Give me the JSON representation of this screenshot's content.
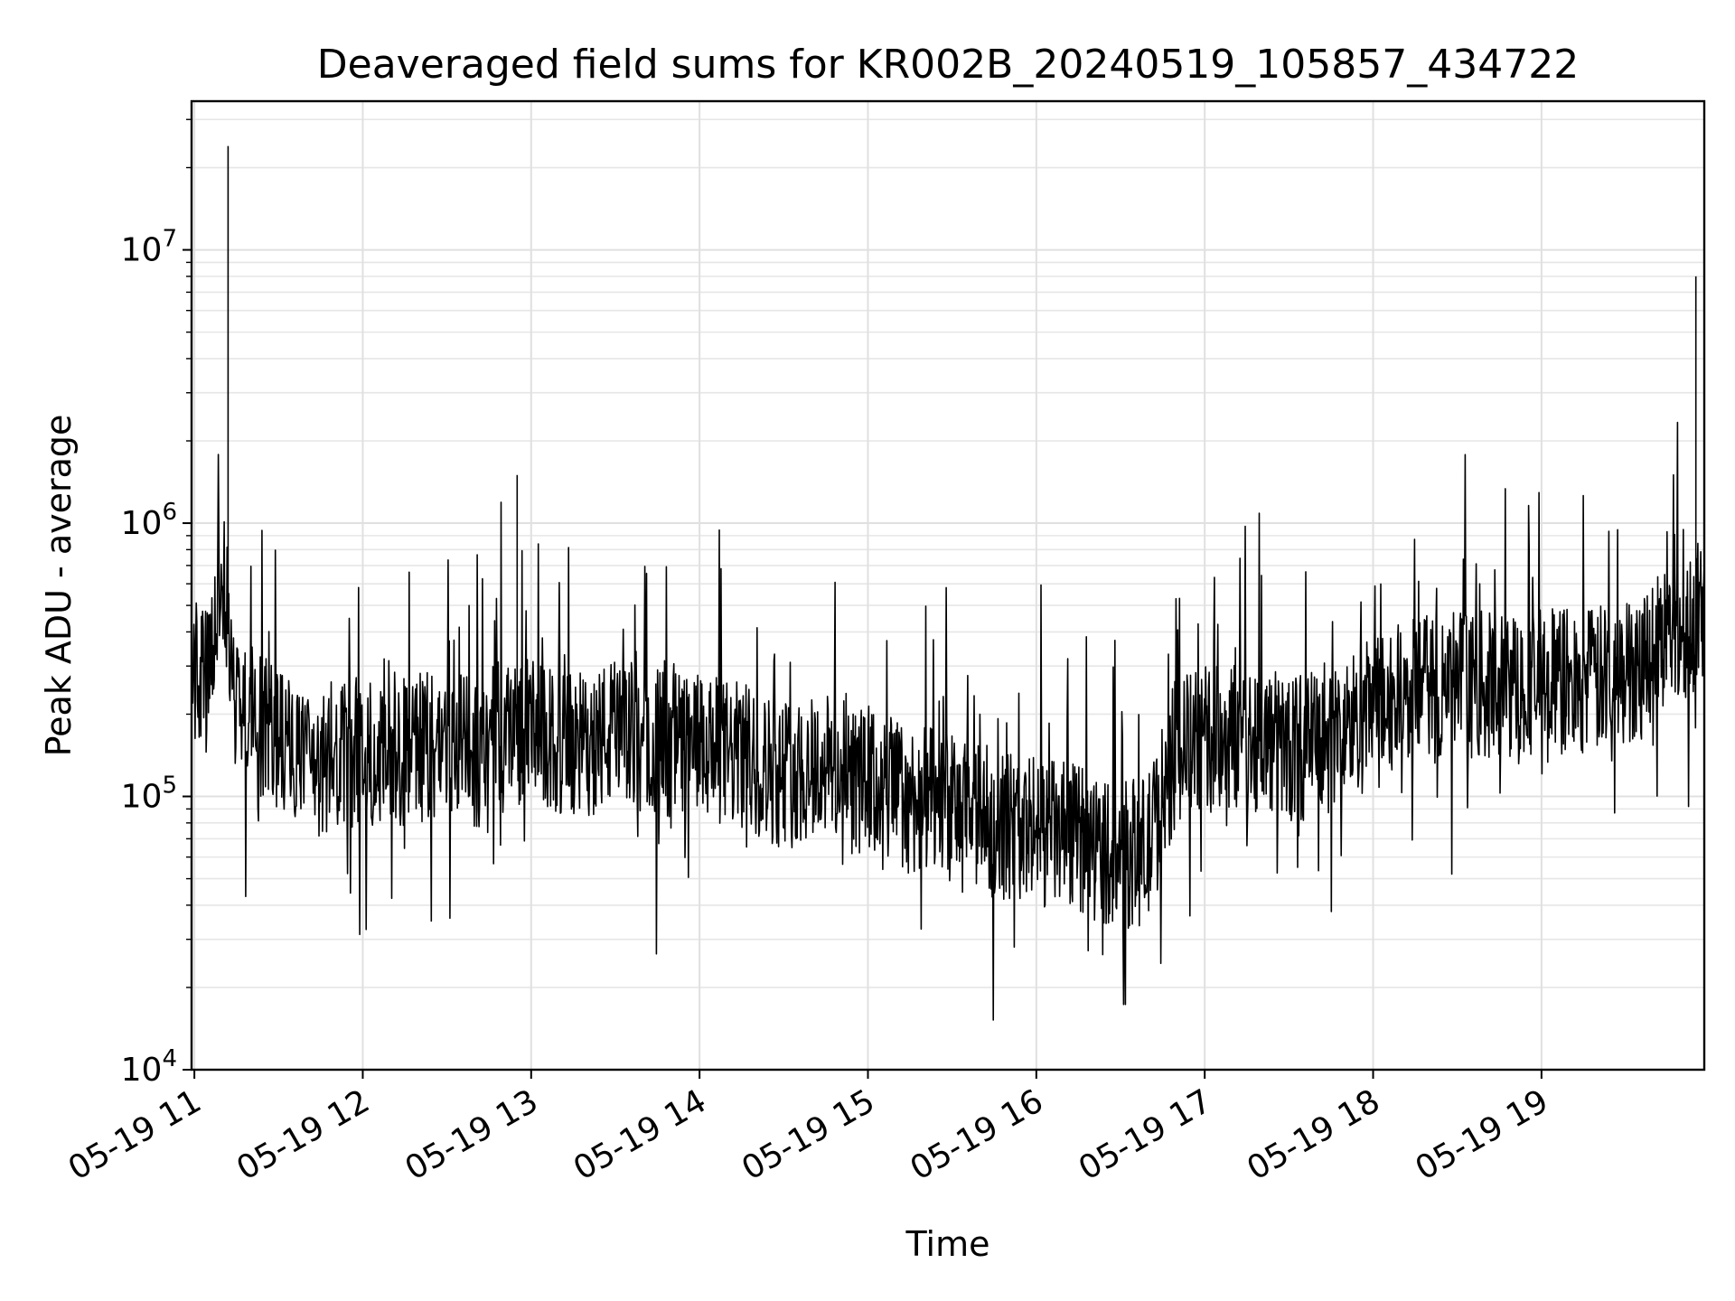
{
  "chart_data": {
    "type": "line",
    "title": "Deaveraged field sums for KR002B_20240519_105857_434722",
    "xlabel": "Time",
    "ylabel": "Peak ADU - average",
    "yscale": "log",
    "ylim": [
      10000,
      35000000
    ],
    "xlim": [
      "2024-05-19 10:59",
      "2024-05-19 19:58"
    ],
    "x_ticks": [
      "05-19 11",
      "05-19 12",
      "05-19 13",
      "05-19 14",
      "05-19 15",
      "05-19 16",
      "05-19 17",
      "05-19 18",
      "05-19 19"
    ],
    "y_ticks": [
      {
        "base": "10",
        "exp": "4",
        "value": 10000
      },
      {
        "base": "10",
        "exp": "5",
        "value": 100000
      },
      {
        "base": "10",
        "exp": "6",
        "value": 1000000
      },
      {
        "base": "10",
        "exp": "7",
        "value": 10000000
      }
    ],
    "grid": true,
    "line_color": "#000000",
    "series": [
      {
        "x": [
          "2024-05-19 10:59",
          "2024-05-19 11:05",
          "2024-05-19 11:10",
          "2024-05-19 11:12",
          "2024-05-19 11:15",
          "2024-05-19 11:20",
          "2024-05-19 11:30",
          "2024-05-19 11:40",
          "2024-05-19 11:50",
          "2024-05-19 12:00",
          "2024-05-19 12:10",
          "2024-05-19 12:20",
          "2024-05-19 12:30",
          "2024-05-19 12:40",
          "2024-05-19 12:50",
          "2024-05-19 12:55",
          "2024-05-19 13:00",
          "2024-05-19 13:05",
          "2024-05-19 13:15",
          "2024-05-19 13:30",
          "2024-05-19 13:45",
          "2024-05-19 14:00",
          "2024-05-19 14:15",
          "2024-05-19 14:30",
          "2024-05-19 14:45",
          "2024-05-19 15:00",
          "2024-05-19 15:15",
          "2024-05-19 15:30",
          "2024-05-19 15:45",
          "2024-05-19 16:00",
          "2024-05-19 16:15",
          "2024-05-19 16:30",
          "2024-05-19 16:40",
          "2024-05-19 16:50",
          "2024-05-19 17:00",
          "2024-05-19 17:15",
          "2024-05-19 17:30",
          "2024-05-19 17:45",
          "2024-05-19 18:00",
          "2024-05-19 18:15",
          "2024-05-19 18:30",
          "2024-05-19 18:45",
          "2024-05-19 19:00",
          "2024-05-19 19:15",
          "2024-05-19 19:30",
          "2024-05-19 19:45",
          "2024-05-19 19:55",
          "2024-05-19 19:58"
        ],
        "y": [
          300000,
          250000,
          700000,
          24000000,
          220000,
          200000,
          170000,
          120000,
          130000,
          150000,
          140000,
          150000,
          160000,
          140000,
          180000,
          1500000,
          170000,
          160000,
          150000,
          170000,
          160000,
          150000,
          140000,
          120000,
          130000,
          110000,
          100000,
          90000,
          80000,
          75000,
          70000,
          60000,
          65000,
          150000,
          160000,
          170000,
          150000,
          160000,
          210000,
          240000,
          260000,
          250000,
          270000,
          260000,
          280000,
          400000,
          8000000,
          500000
        ]
      }
    ]
  }
}
